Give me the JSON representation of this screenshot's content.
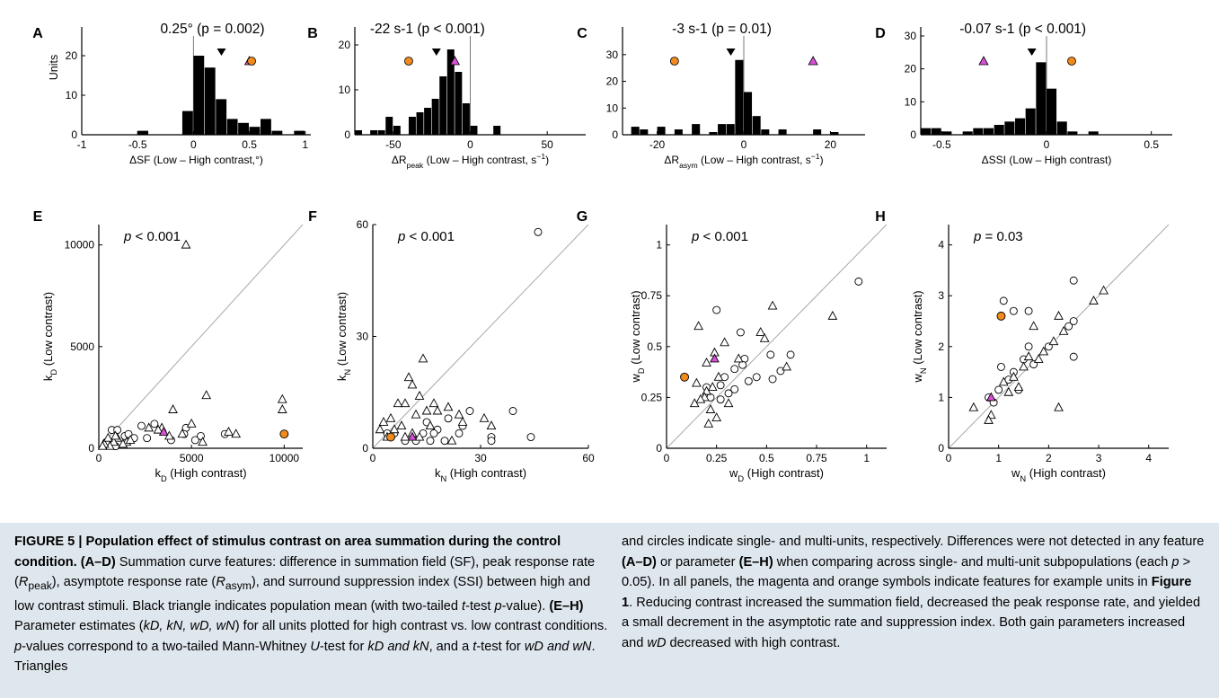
{
  "figure": {
    "number": "FIGURE 5",
    "title": "Population effect of stimulus contrast on area summation during the control condition.",
    "top_row_ylabel": "Units",
    "bottom_xlabel_suffix": "(High contrast)",
    "bottom_ylabel_suffix": "(Low contrast)",
    "annotations": {
      "A": "0.25° (p = 0.002)",
      "B": "-22 s-1 (p < 0.001)",
      "C": "-3 s-1 (p = 0.01)",
      "D": "-0.07 s-1 (p < 0.001)",
      "E": "p < 0.001",
      "F": "p < 0.001",
      "G": "p < 0.001",
      "H": "p = 0.03"
    }
  },
  "colors": {
    "magenta": "#d84fd8",
    "orange": "#f08a1c",
    "bar": "#000000",
    "axis": "#000000",
    "diag": "#a8a8a8",
    "caption_bg": "#dfe7ee"
  },
  "chart_data": [
    {
      "panel": "A",
      "type": "bar",
      "xlabel": "ΔSF (Low – High contrast,°)",
      "ylabel": "Units",
      "xlim": [
        -1,
        1.05
      ],
      "ylim": [
        0,
        25
      ],
      "bin_width": 0.1,
      "xticks": [
        -1,
        -0.5,
        0,
        0.5,
        1
      ],
      "xtick_labels": [
        "-1",
        "-0.5",
        "0",
        "0.5",
        "1"
      ],
      "yticks": [
        0,
        10,
        20
      ],
      "ytick_labels": [
        "0",
        "10",
        "20"
      ],
      "bins": [
        [
          -0.45,
          1
        ],
        [
          -0.05,
          6
        ],
        [
          0.05,
          20
        ],
        [
          0.15,
          17
        ],
        [
          0.25,
          9
        ],
        [
          0.35,
          4
        ],
        [
          0.45,
          3
        ],
        [
          0.55,
          2
        ],
        [
          0.65,
          4
        ],
        [
          0.75,
          1
        ],
        [
          0.95,
          1
        ]
      ],
      "mean": 0.25,
      "magenta": 0.5,
      "orange": 0.52
    },
    {
      "panel": "B",
      "type": "bar",
      "xlabel": "ΔRpeak (Low – High contrast, s-1)",
      "xlim": [
        -75,
        75
      ],
      "ylim": [
        0,
        22
      ],
      "bin_width": 5,
      "xticks": [
        -50,
        0,
        50
      ],
      "xtick_labels": [
        "-50",
        "0",
        "50"
      ],
      "yticks": [
        0,
        10,
        20
      ],
      "ytick_labels": [
        "0",
        "10",
        "20"
      ],
      "bins": [
        [
          -72.5,
          1
        ],
        [
          -62.5,
          1
        ],
        [
          -57.5,
          1
        ],
        [
          -52.5,
          4
        ],
        [
          -47.5,
          2
        ],
        [
          -37.5,
          4
        ],
        [
          -32.5,
          5
        ],
        [
          -27.5,
          6
        ],
        [
          -22.5,
          8
        ],
        [
          -17.5,
          13
        ],
        [
          -12.5,
          19
        ],
        [
          -7.5,
          14
        ],
        [
          -2.5,
          7
        ],
        [
          2.5,
          2
        ],
        [
          17.5,
          2
        ]
      ],
      "mean": -22,
      "magenta": -10,
      "orange": -40
    },
    {
      "panel": "C",
      "type": "bar",
      "xlabel": "ΔRasym (Low – High contrast, s-1)",
      "xlim": [
        -28,
        28
      ],
      "ylim": [
        0,
        37
      ],
      "bin_width": 2,
      "xticks": [
        -20,
        0,
        20
      ],
      "xtick_labels": [
        "-20",
        "0",
        "20"
      ],
      "yticks": [
        0,
        10,
        20,
        30
      ],
      "ytick_labels": [
        "0",
        "10",
        "20",
        "30"
      ],
      "bins": [
        [
          -25,
          3
        ],
        [
          -23,
          2
        ],
        [
          -19,
          3
        ],
        [
          -15,
          2
        ],
        [
          -11,
          4
        ],
        [
          -7,
          1
        ],
        [
          -5,
          4
        ],
        [
          -3,
          4
        ],
        [
          -1,
          28
        ],
        [
          1,
          16
        ],
        [
          3,
          7
        ],
        [
          5,
          2
        ],
        [
          9,
          2
        ],
        [
          17,
          2
        ],
        [
          21,
          1
        ]
      ],
      "mean": -3,
      "magenta": 16,
      "orange": -16
    },
    {
      "panel": "D",
      "type": "bar",
      "xlabel": "ΔSSI (Low – High contrast)",
      "xlim": [
        -0.6,
        0.6
      ],
      "ylim": [
        0,
        30
      ],
      "bin_width": 0.05,
      "xticks": [
        -0.5,
        0,
        0.5
      ],
      "xtick_labels": [
        "-0.5",
        "0",
        "0.5"
      ],
      "yticks": [
        0,
        10,
        20,
        30
      ],
      "ytick_labels": [
        "0",
        "10",
        "20",
        "30"
      ],
      "bins": [
        [
          -0.575,
          2
        ],
        [
          -0.525,
          2
        ],
        [
          -0.475,
          1
        ],
        [
          -0.375,
          1
        ],
        [
          -0.325,
          2
        ],
        [
          -0.275,
          2
        ],
        [
          -0.225,
          3
        ],
        [
          -0.175,
          4
        ],
        [
          -0.125,
          5
        ],
        [
          -0.075,
          8
        ],
        [
          -0.025,
          22
        ],
        [
          0.025,
          14
        ],
        [
          0.075,
          4
        ],
        [
          0.125,
          1
        ],
        [
          0.225,
          1
        ]
      ],
      "mean": -0.07,
      "magenta": -0.3,
      "orange": 0.12
    },
    {
      "panel": "E",
      "type": "scatter",
      "xlabel": "k_D (High contrast)",
      "ylabel": "k_D (Low contrast)",
      "xlim": [
        0,
        11000
      ],
      "ylim": [
        0,
        11000
      ],
      "xticks": [
        0,
        5000,
        10000
      ],
      "xtick_labels": [
        "0",
        "5000",
        "10000"
      ],
      "yticks": [
        0,
        5000,
        10000
      ],
      "ytick_labels": [
        "0",
        "5000",
        "10000"
      ],
      "triangles": [
        [
          4700,
          10000
        ],
        [
          9900,
          2400
        ],
        [
          9900,
          1900
        ],
        [
          5800,
          2600
        ],
        [
          4000,
          1900
        ],
        [
          3400,
          1000
        ],
        [
          2700,
          1000
        ],
        [
          5000,
          1200
        ],
        [
          4500,
          700
        ],
        [
          7000,
          800
        ],
        [
          7400,
          700
        ],
        [
          5600,
          300
        ],
        [
          1500,
          300
        ],
        [
          1000,
          500
        ],
        [
          800,
          300
        ],
        [
          600,
          100
        ],
        [
          300,
          200
        ],
        [
          500,
          500
        ],
        [
          1300,
          200
        ],
        [
          200,
          100
        ],
        [
          1700,
          400
        ],
        [
          900,
          600
        ],
        [
          3200,
          900
        ],
        [
          3800,
          600
        ]
      ],
      "circles": [
        [
          3000,
          1200
        ],
        [
          2300,
          1100
        ],
        [
          4700,
          1000
        ],
        [
          5500,
          600
        ],
        [
          4600,
          700
        ],
        [
          6800,
          700
        ],
        [
          2600,
          500
        ],
        [
          700,
          900
        ],
        [
          1000,
          900
        ],
        [
          1400,
          600
        ],
        [
          1900,
          500
        ],
        [
          400,
          300
        ],
        [
          900,
          100
        ],
        [
          1600,
          700
        ],
        [
          5200,
          400
        ],
        [
          3900,
          400
        ]
      ],
      "magenta": [
        3500,
        800
      ],
      "orange": [
        10000,
        700
      ]
    },
    {
      "panel": "F",
      "type": "scatter",
      "xlabel": "k_N (High contrast)",
      "ylabel": "k_N (Low contrast)",
      "xlim": [
        0,
        60
      ],
      "ylim": [
        0,
        60
      ],
      "xticks": [
        0,
        30,
        60
      ],
      "xtick_labels": [
        "0",
        "30",
        "60"
      ],
      "yticks": [
        0,
        30,
        60
      ],
      "ytick_labels": [
        "0",
        "30",
        "60"
      ],
      "triangles": [
        [
          14,
          24
        ],
        [
          10,
          19
        ],
        [
          11,
          17
        ],
        [
          13,
          14
        ],
        [
          9,
          12
        ],
        [
          7,
          12
        ],
        [
          15,
          10
        ],
        [
          17,
          12
        ],
        [
          18,
          10
        ],
        [
          21,
          11
        ],
        [
          24,
          9
        ],
        [
          25,
          7
        ],
        [
          31,
          8
        ],
        [
          33,
          6
        ],
        [
          5,
          8
        ],
        [
          3,
          7
        ],
        [
          2,
          5
        ],
        [
          4,
          3
        ],
        [
          6,
          5
        ],
        [
          8,
          6
        ],
        [
          11,
          4
        ],
        [
          9,
          3
        ],
        [
          13,
          3
        ],
        [
          22,
          2
        ],
        [
          16,
          6
        ],
        [
          12,
          9
        ]
      ],
      "circles": [
        [
          46,
          58
        ],
        [
          39,
          10
        ],
        [
          44,
          3
        ],
        [
          27,
          10
        ],
        [
          25,
          6
        ],
        [
          24,
          4
        ],
        [
          18,
          5
        ],
        [
          17,
          4
        ],
        [
          20,
          2
        ],
        [
          16,
          2
        ],
        [
          33,
          3
        ],
        [
          33,
          2
        ],
        [
          14,
          4
        ],
        [
          12,
          2
        ],
        [
          9,
          2
        ],
        [
          4,
          4
        ],
        [
          6,
          4
        ],
        [
          15,
          7
        ],
        [
          21,
          8
        ]
      ],
      "magenta": [
        11,
        3
      ],
      "orange": [
        5,
        3
      ]
    },
    {
      "panel": "G",
      "type": "scatter",
      "xlabel": "w_D (High contrast)",
      "ylabel": "w_D (Low contrast)",
      "xlim": [
        0,
        1.1
      ],
      "ylim": [
        0,
        1.1
      ],
      "xticks": [
        0,
        0.25,
        0.5,
        0.75,
        1
      ],
      "xtick_labels": [
        "0",
        "0.25",
        "0.5",
        "0.75",
        "1"
      ],
      "yticks": [
        0,
        0.25,
        0.5,
        0.75,
        1
      ],
      "ytick_labels": [
        "0",
        "0.25",
        "0.5",
        "0.75",
        "1"
      ],
      "triangles": [
        [
          0.53,
          0.7
        ],
        [
          0.83,
          0.65
        ],
        [
          0.16,
          0.6
        ],
        [
          0.47,
          0.57
        ],
        [
          0.49,
          0.54
        ],
        [
          0.29,
          0.52
        ],
        [
          0.24,
          0.47
        ],
        [
          0.6,
          0.4
        ],
        [
          0.36,
          0.44
        ],
        [
          0.2,
          0.42
        ],
        [
          0.26,
          0.35
        ],
        [
          0.23,
          0.3
        ],
        [
          0.2,
          0.28
        ],
        [
          0.19,
          0.25
        ],
        [
          0.17,
          0.24
        ],
        [
          0.14,
          0.22
        ],
        [
          0.22,
          0.19
        ],
        [
          0.25,
          0.15
        ],
        [
          0.21,
          0.12
        ],
        [
          0.31,
          0.22
        ],
        [
          0.15,
          0.32
        ]
      ],
      "circles": [
        [
          0.96,
          0.82
        ],
        [
          0.25,
          0.68
        ],
        [
          0.37,
          0.57
        ],
        [
          0.52,
          0.46
        ],
        [
          0.62,
          0.46
        ],
        [
          0.39,
          0.44
        ],
        [
          0.38,
          0.41
        ],
        [
          0.34,
          0.39
        ],
        [
          0.45,
          0.35
        ],
        [
          0.53,
          0.34
        ],
        [
          0.29,
          0.35
        ],
        [
          0.27,
          0.31
        ],
        [
          0.2,
          0.3
        ],
        [
          0.34,
          0.29
        ],
        [
          0.31,
          0.27
        ],
        [
          0.22,
          0.25
        ],
        [
          0.27,
          0.24
        ],
        [
          0.57,
          0.38
        ],
        [
          0.41,
          0.33
        ]
      ],
      "magenta": [
        0.24,
        0.44
      ],
      "orange": [
        0.09,
        0.35
      ]
    },
    {
      "panel": "H",
      "type": "scatter",
      "xlabel": "w_N (High contrast)",
      "ylabel": "w_N (Low contrast)",
      "xlim": [
        0,
        4.4
      ],
      "ylim": [
        0,
        4.4
      ],
      "xticks": [
        0,
        1,
        2,
        3,
        4
      ],
      "xtick_labels": [
        "0",
        "1",
        "2",
        "3",
        "4"
      ],
      "yticks": [
        0,
        1,
        2,
        3,
        4
      ],
      "ytick_labels": [
        "0",
        "1",
        "2",
        "3",
        "4"
      ],
      "triangles": [
        [
          3.1,
          3.1
        ],
        [
          2.9,
          2.9
        ],
        [
          2.2,
          2.6
        ],
        [
          1.7,
          2.4
        ],
        [
          2.3,
          2.3
        ],
        [
          2.1,
          2.1
        ],
        [
          1.9,
          1.9
        ],
        [
          1.8,
          1.75
        ],
        [
          1.5,
          1.6
        ],
        [
          1.3,
          1.4
        ],
        [
          1.1,
          1.3
        ],
        [
          1.2,
          1.1
        ],
        [
          0.85,
          0.65
        ],
        [
          0.8,
          0.55
        ],
        [
          2.2,
          0.8
        ],
        [
          0.5,
          0.8
        ],
        [
          1.6,
          1.8
        ],
        [
          1.4,
          1.2
        ]
      ],
      "circles": [
        [
          2.5,
          3.3
        ],
        [
          1.1,
          2.9
        ],
        [
          1.3,
          2.7
        ],
        [
          1.6,
          2.7
        ],
        [
          2.5,
          2.5
        ],
        [
          2.4,
          2.4
        ],
        [
          1.6,
          2.0
        ],
        [
          2.0,
          2.0
        ],
        [
          1.5,
          1.75
        ],
        [
          1.7,
          1.65
        ],
        [
          1.3,
          1.5
        ],
        [
          1.2,
          1.35
        ],
        [
          1.05,
          1.6
        ],
        [
          1.4,
          1.15
        ],
        [
          0.9,
          0.9
        ],
        [
          0.8,
          1.0
        ],
        [
          2.5,
          1.8
        ],
        [
          1.0,
          1.15
        ]
      ],
      "magenta": [
        0.85,
        1.0
      ],
      "orange": [
        1.05,
        2.6
      ]
    }
  ],
  "caption": {
    "fig_label": "FIGURE 5 | Population effect of stimulus contrast on area summation during the control condition.",
    "ad_label": "(A–D)",
    "ad_text": " Summation curve features: difference in summation field (SF), peak response rate (",
    "r_peak": "R",
    "r_peak_sub": "peak",
    "mid1": "), asymptote response rate (",
    "r_asym": "R",
    "r_asym_sub": "asym",
    "mid2": "), and surround suppression index (SSI) between high and low contrast stimuli. Black triangle indicates population mean (with two-tailed ",
    "t1": "t",
    "mid3": "-test ",
    "p1": "p",
    "mid4": "-value). ",
    "eh_label": "(E–H)",
    "eh_text": " Parameter estimates (",
    "params": "kD, kN, wD, wN",
    "mid5": ") for all units plotted for high contrast vs. low contrast conditions. ",
    "p2": "p",
    "mid6": "-values correspond to a two-tailed Mann-Whitney ",
    "u": "U",
    "mid7": "-test for ",
    "kk": "kD and kN",
    "mid8": ", and a ",
    "t2": "t",
    "mid9": "-test for ",
    "ww": "wD and wN",
    "mid10": ". Triangles",
    "right1": "and circles indicate single- and multi-units, respectively. Differences were not detected in any feature ",
    "ad2": "(A–D)",
    "right2": " or parameter ",
    "eh2": "(E–H)",
    "right3": " when comparing across single- and multi-unit subpopulations (each ",
    "p3": "p",
    "right4": " > 0.05). In all panels, the magenta and orange symbols indicate features for example units in ",
    "fig1": "Figure 1",
    "right5": ". Reducing contrast increased the summation field, decreased the peak response rate, and yielded a small decrement in the asymptotic rate and suppression index. Both gain parameters increased and ",
    "wd": "wD",
    "right6": " decreased with high contrast."
  }
}
